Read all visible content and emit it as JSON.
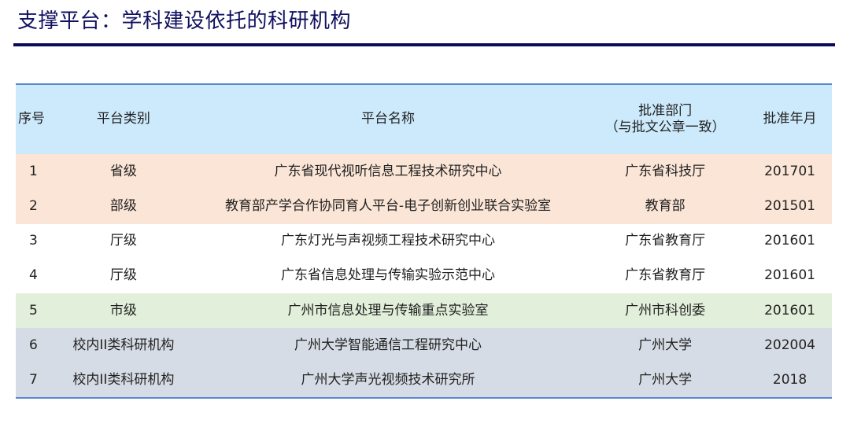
{
  "title": "支撑平台：学科建设依托的科研机构",
  "table": {
    "headers": [
      "序号",
      "平台类别",
      "平台名称",
      "批准部门",
      "（与批文公章一致）",
      "批准年月"
    ],
    "rows": [
      {
        "no": "1",
        "category": "省级",
        "name": "广东省现代视听信息工程技术研究中心",
        "dept": "广东省科技厅",
        "date": "201701",
        "color": "#fbe5d6"
      },
      {
        "no": "2",
        "category": "部级",
        "name": "教育部产学合作协同育人平台-电子创新创业联合实验室",
        "dept": "教育部",
        "date": "201501",
        "color": "#fbe5d6"
      },
      {
        "no": "3",
        "category": "厅级",
        "name": "广东灯光与声视频工程技术研究中心",
        "dept": "广东省教育厅",
        "date": "201601",
        "color": "#ffffff"
      },
      {
        "no": "4",
        "category": "厅级",
        "name": "广东省信息处理与传输实验示范中心",
        "dept": "广东省教育厅",
        "date": "201601",
        "color": "#ffffff"
      },
      {
        "no": "5",
        "category": "市级",
        "name": "广州市信息处理与传输重点实验室",
        "dept": "广州市科创委",
        "date": "201601",
        "color": "#e2efda"
      },
      {
        "no": "6",
        "category": "校内II类科研机构",
        "name": "广州大学智能通信工程研究中心",
        "dept": "广州大学",
        "date": "202004",
        "color": "#d6dce5"
      },
      {
        "no": "7",
        "category": "校内II类科研机构",
        "name": "广州大学声光视频技术研究所",
        "dept": "广州大学",
        "date": "2018",
        "color": "#d6dce5"
      }
    ]
  },
  "colors": {
    "title": "#101060",
    "header_bg": "#cdeafc",
    "border": "#5b86d0"
  }
}
